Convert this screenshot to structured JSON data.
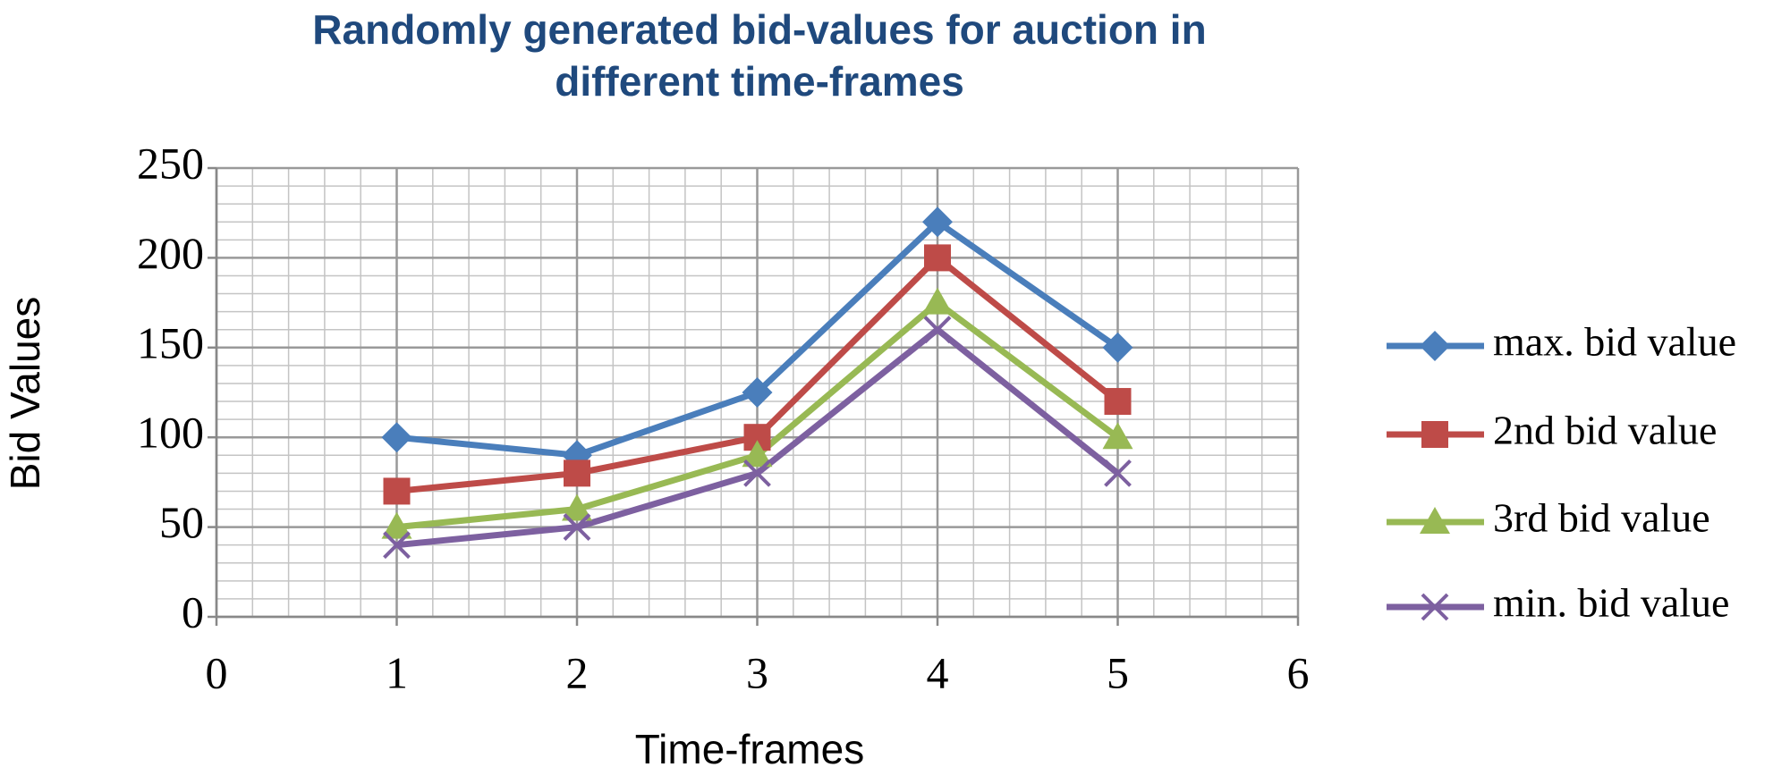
{
  "chart_data": {
    "type": "line",
    "title": "Randomly generated bid-values for auction in different time-frames",
    "x_label": "Time-frames",
    "y_label": "Bid Values",
    "x": [
      1,
      2,
      3,
      4,
      5
    ],
    "series": [
      {
        "name": "max. bid value",
        "color": "#4a7ebb",
        "marker": "diamond",
        "values": [
          100,
          90,
          125,
          220,
          150
        ]
      },
      {
        "name": "2nd bid value",
        "color": "#be4b48",
        "marker": "square",
        "values": [
          70,
          80,
          100,
          200,
          120
        ]
      },
      {
        "name": "3rd bid value",
        "color": "#98b954",
        "marker": "triangle",
        "values": [
          50,
          60,
          90,
          175,
          100
        ]
      },
      {
        "name": "min. bid value",
        "color": "#7d60a0",
        "marker": "x",
        "values": [
          40,
          50,
          80,
          160,
          80
        ]
      }
    ],
    "xlim": [
      0,
      6
    ],
    "xticks": [
      0,
      1,
      2,
      3,
      4,
      5,
      6
    ],
    "ylim": [
      0,
      250
    ],
    "yticks": [
      0,
      50,
      100,
      150,
      200,
      250
    ],
    "grid": true,
    "minor_divisions": 5,
    "legend": "right"
  }
}
